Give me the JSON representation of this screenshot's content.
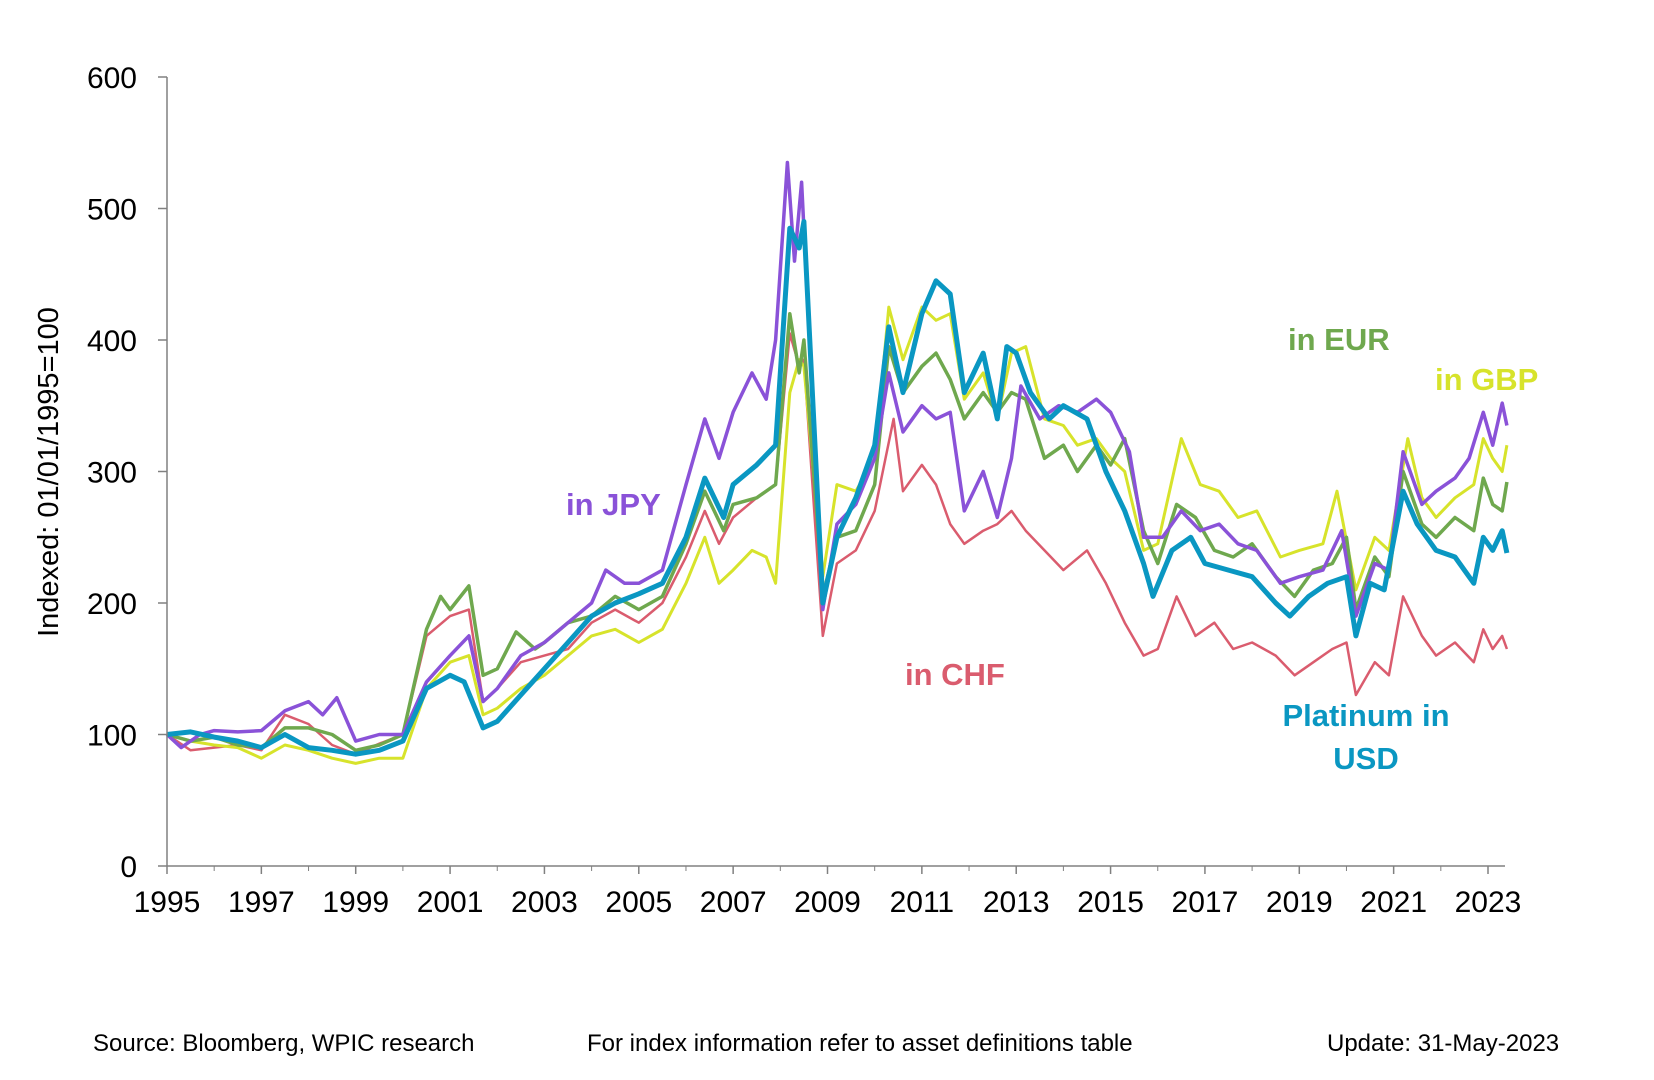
{
  "chart_data": {
    "type": "line",
    "title": "",
    "xlabel": "",
    "ylabel": "Indexed:  01/01/1995=100",
    "xlim": [
      1995,
      2023.42
    ],
    "ylim": [
      0,
      600
    ],
    "grid": false,
    "legend": "inline labels",
    "x_ticks": [
      "1995",
      "1997",
      "1999",
      "2001",
      "2003",
      "2005",
      "2007",
      "2009",
      "2011",
      "2013",
      "2015",
      "2017",
      "2019",
      "2021",
      "2023"
    ],
    "y_ticks": [
      "0",
      "100",
      "200",
      "300",
      "400",
      "500",
      "600"
    ],
    "series": [
      {
        "name": "in CHF",
        "color": "#DA5C6E",
        "width": 2.5,
        "x": [
          1995,
          1995.5,
          1996,
          1996.5,
          1997,
          1997.5,
          1998,
          1998.5,
          1999,
          1999.5,
          2000,
          2000.5,
          2001,
          2001.4,
          2001.7,
          2002,
          2002.5,
          2003,
          2003.5,
          2004,
          2004.5,
          2005,
          2005.5,
          2006,
          2006.4,
          2006.7,
          2007,
          2007.5,
          2007.9,
          2008.2,
          2008.4,
          2008.5,
          2008.9,
          2009.2,
          2009.6,
          2010,
          2010.4,
          2010.6,
          2011,
          2011.3,
          2011.6,
          2011.9,
          2012.3,
          2012.6,
          2012.9,
          2013.2,
          2013.6,
          2014,
          2014.5,
          2014.9,
          2015.3,
          2015.7,
          2016,
          2016.4,
          2016.8,
          2017.2,
          2017.6,
          2018,
          2018.5,
          2018.9,
          2019.3,
          2019.7,
          2020,
          2020.2,
          2020.6,
          2020.9,
          2021.2,
          2021.6,
          2021.9,
          2022.3,
          2022.7,
          2022.9,
          2023.1,
          2023.3,
          2023.4
        ],
        "y": [
          100,
          88,
          90,
          92,
          88,
          115,
          108,
          92,
          85,
          93,
          100,
          175,
          190,
          195,
          125,
          135,
          155,
          160,
          165,
          185,
          195,
          185,
          200,
          235,
          270,
          245,
          265,
          280,
          290,
          405,
          380,
          385,
          175,
          230,
          240,
          270,
          340,
          285,
          305,
          290,
          260,
          245,
          255,
          260,
          270,
          255,
          240,
          225,
          240,
          215,
          185,
          160,
          165,
          205,
          175,
          185,
          165,
          170,
          160,
          145,
          155,
          165,
          170,
          130,
          155,
          145,
          205,
          175,
          160,
          170,
          155,
          180,
          165,
          175,
          165
        ]
      },
      {
        "name": "in GBP",
        "color": "#D7E32B",
        "width": 3,
        "x": [
          1995,
          1995.5,
          1996,
          1996.5,
          1997,
          1997.5,
          1998,
          1998.5,
          1999,
          1999.5,
          2000,
          2000.5,
          2001,
          2001.4,
          2001.7,
          2002,
          2002.5,
          2003,
          2003.5,
          2004,
          2004.5,
          2005,
          2005.5,
          2006,
          2006.4,
          2006.7,
          2007,
          2007.4,
          2007.7,
          2007.9,
          2008.2,
          2008.4,
          2008.5,
          2008.9,
          2009.2,
          2009.6,
          2010,
          2010.3,
          2010.6,
          2011,
          2011.3,
          2011.6,
          2011.9,
          2012.3,
          2012.6,
          2012.9,
          2013.2,
          2013.6,
          2014,
          2014.3,
          2014.7,
          2015,
          2015.3,
          2015.7,
          2016,
          2016.5,
          2016.9,
          2017.3,
          2017.7,
          2018.1,
          2018.6,
          2019,
          2019.5,
          2019.8,
          2020.2,
          2020.6,
          2020.9,
          2021.3,
          2021.6,
          2021.9,
          2022.3,
          2022.7,
          2022.9,
          2023.1,
          2023.3,
          2023.4
        ],
        "y": [
          100,
          95,
          92,
          90,
          82,
          92,
          88,
          82,
          78,
          82,
          82,
          135,
          155,
          160,
          115,
          120,
          135,
          145,
          160,
          175,
          180,
          170,
          180,
          215,
          250,
          215,
          225,
          240,
          235,
          215,
          360,
          385,
          380,
          220,
          290,
          285,
          310,
          425,
          385,
          425,
          415,
          420,
          355,
          375,
          340,
          390,
          395,
          340,
          335,
          320,
          325,
          310,
          300,
          240,
          245,
          325,
          290,
          285,
          265,
          270,
          235,
          240,
          245,
          285,
          210,
          250,
          240,
          325,
          280,
          265,
          280,
          290,
          325,
          310,
          300,
          320
        ]
      },
      {
        "name": "in EUR",
        "color": "#6FA84E",
        "width": 3.5,
        "x": [
          1995,
          1995.5,
          1996,
          1996.5,
          1997,
          1997.5,
          1998,
          1998.5,
          1999,
          1999.5,
          2000,
          2000.5,
          2000.8,
          2001,
          2001.4,
          2001.7,
          2002,
          2002.4,
          2002.8,
          2003,
          2003.5,
          2004,
          2004.5,
          2005,
          2005.5,
          2006,
          2006.4,
          2006.8,
          2007,
          2007.5,
          2007.9,
          2008.2,
          2008.4,
          2008.5,
          2008.9,
          2009.2,
          2009.6,
          2010,
          2010.3,
          2010.6,
          2011,
          2011.3,
          2011.6,
          2011.9,
          2012.3,
          2012.6,
          2012.9,
          2013.2,
          2013.6,
          2014,
          2014.3,
          2014.7,
          2015,
          2015.3,
          2015.7,
          2016,
          2016.4,
          2016.8,
          2017.2,
          2017.6,
          2018,
          2018.5,
          2018.9,
          2019.3,
          2019.7,
          2020,
          2020.2,
          2020.6,
          2020.9,
          2021.2,
          2021.6,
          2021.9,
          2022.3,
          2022.7,
          2022.9,
          2023.1,
          2023.3,
          2023.4
        ],
        "y": [
          100,
          95,
          98,
          92,
          90,
          105,
          105,
          100,
          88,
          92,
          100,
          180,
          205,
          195,
          213,
          145,
          150,
          178,
          165,
          170,
          185,
          190,
          205,
          195,
          205,
          245,
          285,
          255,
          275,
          280,
          290,
          420,
          375,
          400,
          205,
          250,
          255,
          290,
          395,
          360,
          380,
          390,
          370,
          340,
          360,
          345,
          360,
          355,
          310,
          320,
          300,
          320,
          305,
          325,
          255,
          230,
          275,
          265,
          240,
          235,
          245,
          220,
          205,
          225,
          230,
          250,
          195,
          235,
          220,
          300,
          260,
          250,
          265,
          255,
          295,
          275,
          270,
          292
        ]
      },
      {
        "name": "in JPY",
        "color": "#8A52D8",
        "width": 3.5,
        "x": [
          1995,
          1995.3,
          1995.7,
          1996,
          1996.5,
          1997,
          1997.5,
          1998,
          1998.3,
          1998.6,
          1999,
          1999.5,
          2000,
          2000.5,
          2001,
          2001.4,
          2001.7,
          2002,
          2002.5,
          2003,
          2003.5,
          2004,
          2004.3,
          2004.7,
          2005,
          2005.5,
          2006,
          2006.4,
          2006.7,
          2007,
          2007.4,
          2007.7,
          2007.9,
          2008.15,
          2008.3,
          2008.45,
          2008.9,
          2009.2,
          2009.6,
          2010,
          2010.3,
          2010.6,
          2011,
          2011.3,
          2011.6,
          2011.9,
          2012.3,
          2012.6,
          2012.9,
          2013.1,
          2013.5,
          2013.9,
          2014.3,
          2014.7,
          2015,
          2015.4,
          2015.7,
          2016.1,
          2016.5,
          2016.9,
          2017.3,
          2017.7,
          2018.1,
          2018.6,
          2019,
          2019.5,
          2019.9,
          2020.2,
          2020.6,
          2020.9,
          2021.2,
          2021.6,
          2021.9,
          2022.3,
          2022.6,
          2022.9,
          2023.1,
          2023.3,
          2023.4
        ],
        "y": [
          100,
          90,
          100,
          103,
          102,
          103,
          118,
          125,
          115,
          128,
          95,
          100,
          100,
          140,
          160,
          175,
          125,
          135,
          160,
          170,
          185,
          200,
          225,
          215,
          215,
          225,
          290,
          340,
          310,
          345,
          375,
          355,
          400,
          535,
          460,
          520,
          195,
          260,
          275,
          310,
          375,
          330,
          350,
          340,
          345,
          270,
          300,
          265,
          310,
          365,
          340,
          350,
          345,
          355,
          345,
          315,
          250,
          250,
          270,
          255,
          260,
          245,
          240,
          215,
          220,
          225,
          255,
          190,
          230,
          225,
          315,
          275,
          285,
          295,
          310,
          345,
          320,
          352,
          335
        ]
      },
      {
        "name": "Platinum in USD",
        "color": "#0A97C2",
        "width": 5,
        "x": [
          1995,
          1995.5,
          1996,
          1996.5,
          1997,
          1997.5,
          1998,
          1998.5,
          1999,
          1999.5,
          2000,
          2000.5,
          2001,
          2001.3,
          2001.7,
          2002,
          2002.5,
          2003,
          2003.5,
          2004,
          2004.5,
          2005,
          2005.5,
          2006,
          2006.4,
          2006.8,
          2007,
          2007.5,
          2007.9,
          2008.2,
          2008.4,
          2008.5,
          2008.9,
          2009.2,
          2009.6,
          2010,
          2010.3,
          2010.6,
          2011,
          2011.3,
          2011.6,
          2011.9,
          2012.3,
          2012.6,
          2012.8,
          2013,
          2013.3,
          2013.7,
          2014,
          2014.5,
          2014.9,
          2015.3,
          2015.7,
          2015.9,
          2016.3,
          2016.7,
          2017,
          2017.5,
          2018,
          2018.5,
          2018.8,
          2019.2,
          2019.6,
          2020,
          2020.2,
          2020.5,
          2020.8,
          2021.2,
          2021.5,
          2021.9,
          2022.3,
          2022.7,
          2022.9,
          2023.1,
          2023.3,
          2023.4
        ],
        "y": [
          100,
          102,
          98,
          95,
          90,
          100,
          90,
          88,
          85,
          88,
          95,
          135,
          145,
          140,
          105,
          110,
          130,
          150,
          170,
          190,
          200,
          207,
          215,
          250,
          295,
          265,
          290,
          305,
          320,
          485,
          470,
          490,
          200,
          250,
          280,
          320,
          410,
          360,
          420,
          445,
          435,
          360,
          390,
          340,
          395,
          390,
          360,
          340,
          350,
          340,
          300,
          270,
          230,
          205,
          240,
          250,
          230,
          225,
          220,
          200,
          190,
          205,
          215,
          220,
          175,
          215,
          210,
          285,
          260,
          240,
          235,
          215,
          250,
          240,
          255,
          238
        ]
      }
    ],
    "annotations": {
      "jpy": "in JPY",
      "eur": "in EUR",
      "gbp": "in GBP",
      "chf": "in CHF",
      "usd_line1": "Platinum in",
      "usd_line2": "USD"
    }
  },
  "footer": {
    "source": "Source: Bloomberg, WPIC research",
    "note": "For index information refer to asset definitions table",
    "update": "Update: 31-May-2023"
  }
}
